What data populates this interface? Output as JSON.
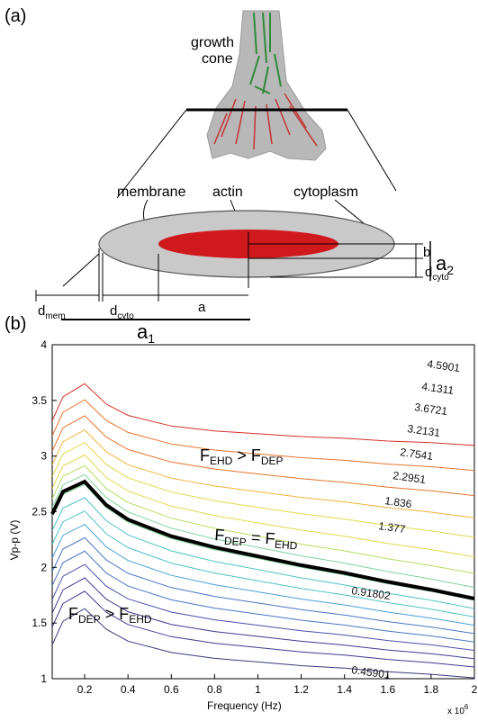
{
  "panel_a": {
    "label": "(a)",
    "growth_cone_line1": "growth",
    "growth_cone_line2": "cone",
    "label_membrane": "membrane",
    "label_actin": "actin",
    "label_cytoplasm": "cytoplasm",
    "dim_b": "b",
    "dim_d": "d",
    "dim_cyto_sub": "cyto",
    "dim_mem_sub": "mem",
    "dim_a": "a",
    "dim_a2": "a",
    "dim_a2_sub": "2",
    "dim_a1": "a",
    "dim_a1_sub": "1",
    "colors": {
      "cell_fill": "#c9c9c9",
      "actin": "#d0191d",
      "cone_green": "#2e8b3a",
      "cone_red": "#c43a3a"
    }
  },
  "panel_b": {
    "label": "(b)",
    "region_upper": {
      "lhs": "F",
      "lhs_sub": "EHD",
      "op": " > ",
      "rhs": "F",
      "rhs_sub": "DEP"
    },
    "region_boundary": {
      "lhs": "F",
      "lhs_sub": "DEP",
      "op": " = ",
      "rhs": "F",
      "rhs_sub": "EHD"
    },
    "region_lower": {
      "lhs": "F",
      "lhs_sub": "DEP",
      "op": " > ",
      "rhs": "F",
      "rhs_sub": "EHD"
    },
    "multiplier_base": "x 10",
    "multiplier_exp": "6"
  },
  "chart_data": {
    "type": "contour",
    "xlabel": "Frequency (Hz)",
    "ylabel": "Vp-p (V)",
    "xlim": [
      0.05,
      2.0
    ],
    "ylim": [
      1,
      4
    ],
    "x_multiplier": "x 10^6",
    "xticks": [
      "0.2",
      "0.4",
      "0.6",
      "0.8",
      "1",
      "1.2",
      "1.4",
      "1.6",
      "1.8",
      "2"
    ],
    "yticks": [
      "1",
      "1.5",
      "2",
      "2.5",
      "3",
      "3.5",
      "4"
    ],
    "contour_levels": [
      "4.5901",
      "4.1311",
      "3.6721",
      "3.2131",
      "2.7541",
      "2.2951",
      "1.836",
      "1.377",
      "0.91802",
      "0.45901"
    ],
    "boundary_curve": {
      "x": [
        0.05,
        0.1,
        0.2,
        0.3,
        0.4,
        0.6,
        0.8,
        1.0,
        1.2,
        1.4,
        1.6,
        1.8,
        2.0
      ],
      "y": [
        2.48,
        2.68,
        2.77,
        2.56,
        2.43,
        2.28,
        2.18,
        2.1,
        2.02,
        1.95,
        1.87,
        1.8,
        1.72
      ]
    },
    "grid": false
  }
}
